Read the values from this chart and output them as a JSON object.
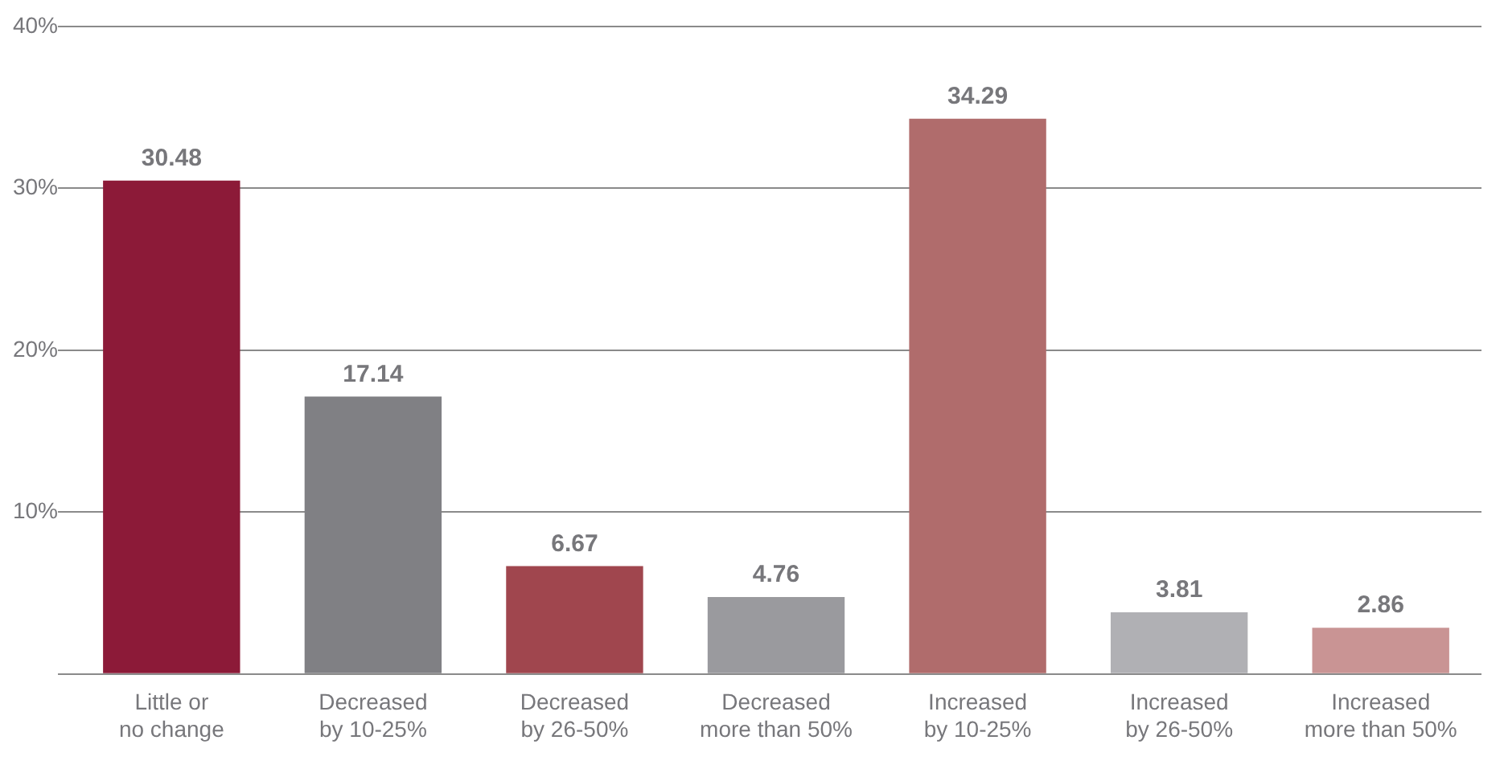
{
  "chart_data": {
    "type": "bar",
    "categories": [
      "Little or no change",
      "Decreased by 10-25%",
      "Decreased by 26-50%",
      "Decreased more than 50%",
      "Increased by 10-25%",
      "Increased by 26-50%",
      "Increased more than 50%"
    ],
    "values": [
      30.48,
      17.14,
      6.67,
      4.76,
      34.29,
      3.81,
      2.86
    ],
    "colors": [
      "#8c1a38",
      "#808084",
      "#a0464e",
      "#9a9a9e",
      "#b06c6c",
      "#b0b0b4",
      "#c99494"
    ],
    "ylim": [
      0,
      40
    ],
    "yticks": [
      {
        "value": 0,
        "label": null
      },
      {
        "value": 10,
        "label": "10%"
      },
      {
        "value": 20,
        "label": "20%"
      },
      {
        "value": 30,
        "label": "30%"
      },
      {
        "value": 40,
        "label": "40%"
      }
    ],
    "grid": "y",
    "data_labels": true,
    "legend": false
  }
}
